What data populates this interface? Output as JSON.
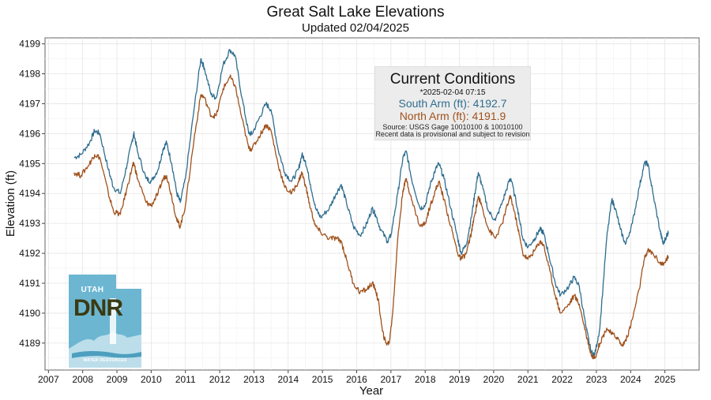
{
  "colors": {
    "south_arm": "#2f6d8f",
    "north_arm": "#a0511c",
    "grid": "#e4e4e4",
    "logo": "#6cb6d2",
    "panel": "#ececec"
  },
  "conditions": {
    "heading": "Current Conditions",
    "timestamp": "*2025-02-04 07:15",
    "south_arm": "South Arm (ft): 4192.7",
    "north_arm": "North Arm (ft): 4191.9",
    "source": "Source: USGS Gage 10010100 & 10010100",
    "note": "Recent data is provisional and subject to revision"
  },
  "logo": {
    "top_text": "UTAH",
    "main_text": "DNR",
    "bottom_text": "WATER RESOURCES"
  },
  "chart_data": {
    "type": "line",
    "title": "Great Salt Lake Elevations",
    "subtitle": "Updated 02/04/2025",
    "xlabel": "Year",
    "ylabel": "Elevation (ft)",
    "xlim": [
      2006.9,
      2026.0
    ],
    "ylim": [
      4188.1,
      4199.2
    ],
    "xticks": [
      2007,
      2008,
      2009,
      2010,
      2011,
      2012,
      2013,
      2014,
      2015,
      2016,
      2017,
      2018,
      2019,
      2020,
      2021,
      2022,
      2023,
      2024,
      2025
    ],
    "yticks": [
      4189,
      4190,
      4191,
      4192,
      4193,
      4194,
      4195,
      4196,
      4197,
      4198,
      4199
    ],
    "grid": true,
    "series": [
      {
        "name": "South Arm",
        "points": [
          [
            2007.75,
            4195.2
          ],
          [
            2007.95,
            4195.3
          ],
          [
            2008.2,
            4195.7
          ],
          [
            2008.35,
            4196.1
          ],
          [
            2008.5,
            4196.0
          ],
          [
            2008.75,
            4194.8
          ],
          [
            2008.9,
            4194.2
          ],
          [
            2009.1,
            4194.0
          ],
          [
            2009.3,
            4195.0
          ],
          [
            2009.45,
            4195.8
          ],
          [
            2009.5,
            4196.0
          ],
          [
            2009.6,
            4195.4
          ],
          [
            2009.85,
            4194.5
          ],
          [
            2010.0,
            4194.4
          ],
          [
            2010.2,
            4194.8
          ],
          [
            2010.35,
            4195.5
          ],
          [
            2010.45,
            4195.7
          ],
          [
            2010.6,
            4195.0
          ],
          [
            2010.75,
            4194.0
          ],
          [
            2010.85,
            4193.7
          ],
          [
            2011.0,
            4194.5
          ],
          [
            2011.25,
            4196.8
          ],
          [
            2011.45,
            4198.5
          ],
          [
            2011.55,
            4198.2
          ],
          [
            2011.75,
            4197.3
          ],
          [
            2011.9,
            4197.2
          ],
          [
            2012.1,
            4198.3
          ],
          [
            2012.3,
            4198.8
          ],
          [
            2012.45,
            4198.6
          ],
          [
            2012.65,
            4197.2
          ],
          [
            2012.85,
            4196.0
          ],
          [
            2012.95,
            4196.0
          ],
          [
            2013.15,
            4196.5
          ],
          [
            2013.35,
            4197.0
          ],
          [
            2013.5,
            4196.8
          ],
          [
            2013.7,
            4195.5
          ],
          [
            2013.9,
            4194.7
          ],
          [
            2014.1,
            4194.4
          ],
          [
            2014.3,
            4194.8
          ],
          [
            2014.4,
            4195.3
          ],
          [
            2014.5,
            4195.1
          ],
          [
            2014.65,
            4194.3
          ],
          [
            2014.8,
            4193.5
          ],
          [
            2014.95,
            4193.2
          ],
          [
            2015.2,
            4193.5
          ],
          [
            2015.4,
            4194.0
          ],
          [
            2015.55,
            4194.3
          ],
          [
            2015.7,
            4193.7
          ],
          [
            2015.9,
            4192.9
          ],
          [
            2016.1,
            4192.6
          ],
          [
            2016.3,
            4193.0
          ],
          [
            2016.45,
            4193.5
          ],
          [
            2016.55,
            4193.3
          ],
          [
            2016.7,
            4192.8
          ],
          [
            2016.9,
            4192.4
          ],
          [
            2017.0,
            4192.6
          ],
          [
            2017.2,
            4194.0
          ],
          [
            2017.35,
            4195.2
          ],
          [
            2017.45,
            4195.4
          ],
          [
            2017.6,
            4194.5
          ],
          [
            2017.85,
            4193.5
          ],
          [
            2018.0,
            4193.6
          ],
          [
            2018.15,
            4194.3
          ],
          [
            2018.3,
            4194.8
          ],
          [
            2018.4,
            4195.0
          ],
          [
            2018.55,
            4194.5
          ],
          [
            2018.75,
            4193.5
          ],
          [
            2018.95,
            4192.5
          ],
          [
            2019.05,
            4192.0
          ],
          [
            2019.2,
            4192.3
          ],
          [
            2019.35,
            4193.2
          ],
          [
            2019.45,
            4194.0
          ],
          [
            2019.55,
            4194.7
          ],
          [
            2019.65,
            4194.3
          ],
          [
            2019.85,
            4193.4
          ],
          [
            2020.05,
            4193.1
          ],
          [
            2020.25,
            4193.7
          ],
          [
            2020.45,
            4194.4
          ],
          [
            2020.5,
            4194.5
          ],
          [
            2020.7,
            4193.5
          ],
          [
            2020.85,
            4192.5
          ],
          [
            2021.0,
            4192.2
          ],
          [
            2021.2,
            4192.5
          ],
          [
            2021.35,
            4192.8
          ],
          [
            2021.45,
            4192.7
          ],
          [
            2021.6,
            4192.0
          ],
          [
            2021.8,
            4191.0
          ],
          [
            2021.95,
            4190.6
          ],
          [
            2022.2,
            4190.9
          ],
          [
            2022.35,
            4191.2
          ],
          [
            2022.5,
            4190.9
          ],
          [
            2022.7,
            4189.5
          ],
          [
            2022.85,
            4188.7
          ],
          [
            2022.95,
            4188.6
          ],
          [
            2023.1,
            4189.5
          ],
          [
            2023.3,
            4192.5
          ],
          [
            2023.45,
            4193.8
          ],
          [
            2023.55,
            4193.5
          ],
          [
            2023.7,
            4192.8
          ],
          [
            2023.85,
            4192.3
          ],
          [
            2024.05,
            4193.0
          ],
          [
            2024.25,
            4194.2
          ],
          [
            2024.4,
            4195.0
          ],
          [
            2024.5,
            4195.0
          ],
          [
            2024.65,
            4194.0
          ],
          [
            2024.85,
            4192.8
          ],
          [
            2024.95,
            4192.3
          ],
          [
            2025.05,
            4192.6
          ],
          [
            2025.1,
            4192.7
          ]
        ]
      },
      {
        "name": "North Arm",
        "points": [
          [
            2007.75,
            4194.7
          ],
          [
            2007.95,
            4194.6
          ],
          [
            2008.2,
            4195.0
          ],
          [
            2008.35,
            4195.3
          ],
          [
            2008.5,
            4195.2
          ],
          [
            2008.75,
            4194.0
          ],
          [
            2008.9,
            4193.4
          ],
          [
            2009.1,
            4193.3
          ],
          [
            2009.3,
            4194.2
          ],
          [
            2009.45,
            4194.9
          ],
          [
            2009.5,
            4195.0
          ],
          [
            2009.6,
            4194.5
          ],
          [
            2009.85,
            4193.7
          ],
          [
            2010.0,
            4193.6
          ],
          [
            2010.2,
            4194.0
          ],
          [
            2010.35,
            4194.5
          ],
          [
            2010.45,
            4194.6
          ],
          [
            2010.6,
            4193.9
          ],
          [
            2010.75,
            4193.1
          ],
          [
            2010.85,
            4192.9
          ],
          [
            2011.0,
            4193.6
          ],
          [
            2011.25,
            4195.8
          ],
          [
            2011.45,
            4197.3
          ],
          [
            2011.55,
            4197.2
          ],
          [
            2011.75,
            4196.6
          ],
          [
            2011.9,
            4196.6
          ],
          [
            2012.1,
            4197.5
          ],
          [
            2012.3,
            4197.9
          ],
          [
            2012.45,
            4197.6
          ],
          [
            2012.65,
            4196.5
          ],
          [
            2012.85,
            4195.5
          ],
          [
            2012.95,
            4195.5
          ],
          [
            2013.15,
            4195.9
          ],
          [
            2013.35,
            4196.3
          ],
          [
            2013.5,
            4196.1
          ],
          [
            2013.7,
            4195.0
          ],
          [
            2013.9,
            4194.2
          ],
          [
            2014.1,
            4194.0
          ],
          [
            2014.3,
            4194.4
          ],
          [
            2014.4,
            4194.7
          ],
          [
            2014.5,
            4194.3
          ],
          [
            2014.65,
            4193.5
          ],
          [
            2014.8,
            4192.9
          ],
          [
            2014.95,
            4192.7
          ],
          [
            2015.2,
            4192.5
          ],
          [
            2015.4,
            4192.5
          ],
          [
            2015.55,
            4192.4
          ],
          [
            2015.7,
            4191.8
          ],
          [
            2015.9,
            4191.0
          ],
          [
            2016.1,
            4190.7
          ],
          [
            2016.3,
            4190.8
          ],
          [
            2016.45,
            4191.0
          ],
          [
            2016.55,
            4190.8
          ],
          [
            2016.65,
            4190.3
          ],
          [
            2016.75,
            4189.4
          ],
          [
            2016.85,
            4189.0
          ],
          [
            2016.95,
            4189.0
          ],
          [
            2017.05,
            4190.0
          ],
          [
            2017.2,
            4192.5
          ],
          [
            2017.35,
            4194.1
          ],
          [
            2017.45,
            4194.5
          ],
          [
            2017.6,
            4193.8
          ],
          [
            2017.85,
            4192.9
          ],
          [
            2018.0,
            4193.0
          ],
          [
            2018.15,
            4193.6
          ],
          [
            2018.3,
            4194.1
          ],
          [
            2018.4,
            4194.4
          ],
          [
            2018.55,
            4193.8
          ],
          [
            2018.75,
            4192.9
          ],
          [
            2018.95,
            4192.0
          ],
          [
            2019.05,
            4191.8
          ],
          [
            2019.2,
            4192.0
          ],
          [
            2019.35,
            4192.7
          ],
          [
            2019.45,
            4193.3
          ],
          [
            2019.55,
            4193.9
          ],
          [
            2019.65,
            4193.6
          ],
          [
            2019.85,
            4192.8
          ],
          [
            2020.05,
            4192.5
          ],
          [
            2020.25,
            4193.0
          ],
          [
            2020.45,
            4193.8
          ],
          [
            2020.5,
            4193.9
          ],
          [
            2020.7,
            4192.9
          ],
          [
            2020.85,
            4192.0
          ],
          [
            2021.0,
            4191.8
          ],
          [
            2021.2,
            4192.1
          ],
          [
            2021.35,
            4192.4
          ],
          [
            2021.45,
            4192.3
          ],
          [
            2021.6,
            4191.6
          ],
          [
            2021.8,
            4190.6
          ],
          [
            2021.95,
            4190.0
          ],
          [
            2022.2,
            4190.3
          ],
          [
            2022.35,
            4190.6
          ],
          [
            2022.5,
            4190.3
          ],
          [
            2022.7,
            4189.3
          ],
          [
            2022.85,
            4188.6
          ],
          [
            2022.95,
            4188.5
          ],
          [
            2023.1,
            4189.0
          ],
          [
            2023.3,
            4189.5
          ],
          [
            2023.45,
            4189.3
          ],
          [
            2023.6,
            4189.2
          ],
          [
            2023.75,
            4188.9
          ],
          [
            2023.9,
            4189.2
          ],
          [
            2024.05,
            4189.8
          ],
          [
            2024.25,
            4190.8
          ],
          [
            2024.4,
            4191.8
          ],
          [
            2024.5,
            4192.1
          ],
          [
            2024.65,
            4192.0
          ],
          [
            2024.85,
            4191.7
          ],
          [
            2024.95,
            4191.6
          ],
          [
            2025.05,
            4191.8
          ],
          [
            2025.1,
            4191.9
          ]
        ]
      }
    ]
  }
}
